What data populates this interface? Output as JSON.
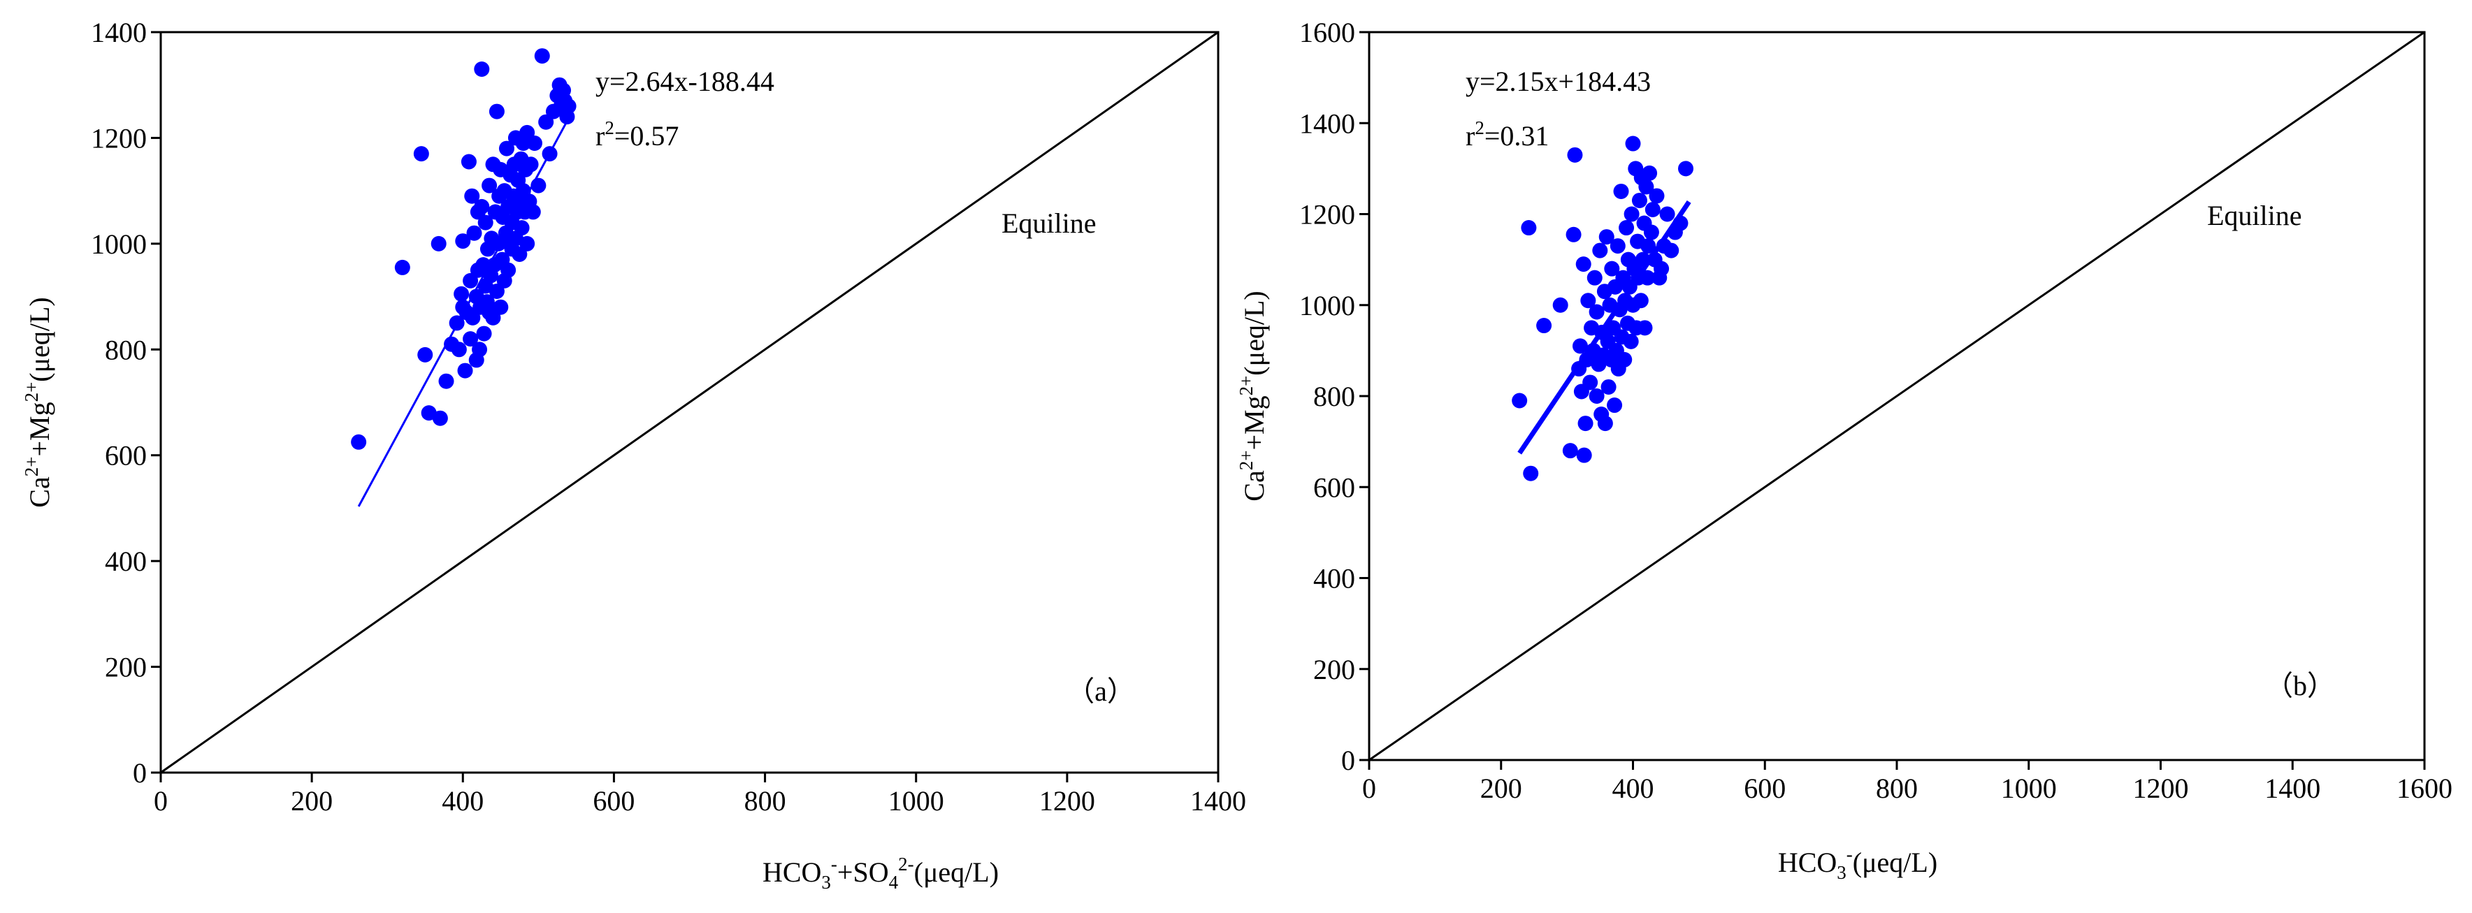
{
  "colors": {
    "points": "#0000ff",
    "fit": "#0000ff",
    "axes": "#000000",
    "equiline": "#000000"
  },
  "chart_data": [
    {
      "type": "scatter",
      "panel": "(a)",
      "panel_label": "（a）",
      "xlabel_parts": [
        "HCO",
        "3",
        "-",
        "+SO",
        "4",
        "2-",
        "(μeq/L)"
      ],
      "ylabel_parts": [
        "Ca",
        "2+",
        "+Mg",
        "2+",
        "(μeq/L)"
      ],
      "xlim": [
        0,
        1400
      ],
      "ylim": [
        0,
        1400
      ],
      "xticks": [
        0,
        200,
        400,
        600,
        800,
        1000,
        1200,
        1400
      ],
      "yticks": [
        0,
        200,
        400,
        600,
        800,
        1000,
        1200,
        1400
      ],
      "xtick_labels": [
        "0",
        "200",
        "400",
        "600",
        "800",
        "1000",
        "1200",
        "1400"
      ],
      "ytick_labels": [
        "0",
        "200",
        "400",
        "600",
        "800",
        "1000",
        "1200",
        "1400"
      ],
      "equation": "y=2.64x-188.44",
      "r2_prefix": "r",
      "r2_sup": "2",
      "r2_value": "=0.57",
      "equiline_label": "Equiline",
      "fit": {
        "slope": 2.64,
        "intercept": -188.44,
        "x_range": [
          262,
          540
        ]
      },
      "points": [
        [
          262,
          625
        ],
        [
          320,
          955
        ],
        [
          345,
          1170
        ],
        [
          350,
          790
        ],
        [
          355,
          680
        ],
        [
          368,
          1000
        ],
        [
          370,
          670
        ],
        [
          378,
          740
        ],
        [
          385,
          810
        ],
        [
          392,
          850
        ],
        [
          395,
          800
        ],
        [
          398,
          905
        ],
        [
          400,
          880
        ],
        [
          400,
          1005
        ],
        [
          403,
          760
        ],
        [
          405,
          870
        ],
        [
          408,
          1155
        ],
        [
          410,
          820
        ],
        [
          410,
          930
        ],
        [
          412,
          1090
        ],
        [
          413,
          860
        ],
        [
          415,
          1020
        ],
        [
          418,
          780
        ],
        [
          418,
          900
        ],
        [
          420,
          950
        ],
        [
          420,
          1060
        ],
        [
          422,
          800
        ],
        [
          423,
          880
        ],
        [
          425,
          1070
        ],
        [
          425,
          1330
        ],
        [
          427,
          960
        ],
        [
          428,
          830
        ],
        [
          430,
          920
        ],
        [
          430,
          1040
        ],
        [
          432,
          890
        ],
        [
          433,
          990
        ],
        [
          435,
          870
        ],
        [
          435,
          1110
        ],
        [
          437,
          940
        ],
        [
          438,
          1010
        ],
        [
          440,
          860
        ],
        [
          440,
          1150
        ],
        [
          442,
          960
        ],
        [
          443,
          1060
        ],
        [
          445,
          910
        ],
        [
          445,
          1250
        ],
        [
          447,
          1000
        ],
        [
          448,
          1090
        ],
        [
          450,
          880
        ],
        [
          450,
          1140
        ],
        [
          452,
          970
        ],
        [
          453,
          1050
        ],
        [
          455,
          930
        ],
        [
          455,
          1100
        ],
        [
          457,
          1020
        ],
        [
          458,
          1180
        ],
        [
          460,
          950
        ],
        [
          460,
          1070
        ],
        [
          462,
          1000
        ],
        [
          463,
          1130
        ],
        [
          465,
          990
        ],
        [
          465,
          1040
        ],
        [
          467,
          1090
        ],
        [
          468,
          1150
        ],
        [
          470,
          1010
        ],
        [
          470,
          1200
        ],
        [
          472,
          1060
        ],
        [
          473,
          1120
        ],
        [
          475,
          980
        ],
        [
          475,
          1080
        ],
        [
          477,
          1160
        ],
        [
          478,
          1030
        ],
        [
          480,
          1100
        ],
        [
          480,
          1190
        ],
        [
          482,
          1060
        ],
        [
          483,
          1140
        ],
        [
          485,
          1000
        ],
        [
          485,
          1210
        ],
        [
          488,
          1080
        ],
        [
          490,
          1150
        ],
        [
          493,
          1060
        ],
        [
          495,
          1190
        ],
        [
          500,
          1110
        ],
        [
          505,
          1355
        ],
        [
          510,
          1230
        ],
        [
          515,
          1170
        ],
        [
          520,
          1250
        ],
        [
          525,
          1280
        ],
        [
          528,
          1300
        ],
        [
          530,
          1260
        ],
        [
          533,
          1290
        ],
        [
          535,
          1270
        ],
        [
          538,
          1240
        ],
        [
          540,
          1260
        ]
      ]
    },
    {
      "type": "scatter",
      "panel": "(b)",
      "panel_label": "（b）",
      "xlabel_parts": [
        "HCO",
        "3",
        "-",
        "(μeq/L)"
      ],
      "ylabel_parts": [
        "Ca",
        "2+",
        "+Mg",
        "2+",
        "(μeq/L)"
      ],
      "xlim": [
        0,
        1600
      ],
      "ylim": [
        0,
        1600
      ],
      "xticks": [
        0,
        200,
        400,
        600,
        800,
        1000,
        1200,
        1400,
        1600
      ],
      "yticks": [
        0,
        200,
        400,
        600,
        800,
        1000,
        1200,
        1400,
        1600
      ],
      "xtick_labels": [
        "0",
        "200",
        "400",
        "600",
        "800",
        "1000",
        "1200",
        "1400",
        "1600"
      ],
      "ytick_labels": [
        "0",
        "200",
        "400",
        "600",
        "800",
        "1000",
        "1200",
        "1400",
        "1600"
      ],
      "equation": "y=2.15x+184.43",
      "r2_prefix": "r",
      "r2_sup": "2",
      "r2_value": "=0.31",
      "equiline_label": "Equiline",
      "fit": {
        "slope": 2.15,
        "intercept": 184.43,
        "x_range": [
          228,
          485
        ]
      },
      "points": [
        [
          228,
          790
        ],
        [
          242,
          1170
        ],
        [
          245,
          630
        ],
        [
          265,
          955
        ],
        [
          290,
          1000
        ],
        [
          305,
          680
        ],
        [
          310,
          1155
        ],
        [
          312,
          1330
        ],
        [
          318,
          860
        ],
        [
          320,
          910
        ],
        [
          322,
          810
        ],
        [
          325,
          1090
        ],
        [
          326,
          670
        ],
        [
          328,
          740
        ],
        [
          330,
          880
        ],
        [
          332,
          1010
        ],
        [
          335,
          830
        ],
        [
          337,
          950
        ],
        [
          340,
          900
        ],
        [
          342,
          1060
        ],
        [
          345,
          800
        ],
        [
          345,
          985
        ],
        [
          348,
          870
        ],
        [
          350,
          1120
        ],
        [
          352,
          760
        ],
        [
          353,
          940
        ],
        [
          355,
          890
        ],
        [
          357,
          1030
        ],
        [
          358,
          740
        ],
        [
          360,
          1150
        ],
        [
          362,
          920
        ],
        [
          363,
          820
        ],
        [
          365,
          1000
        ],
        [
          367,
          880
        ],
        [
          368,
          1080
        ],
        [
          370,
          950
        ],
        [
          372,
          780
        ],
        [
          373,
          1040
        ],
        [
          375,
          900
        ],
        [
          377,
          1130
        ],
        [
          378,
          860
        ],
        [
          380,
          990
        ],
        [
          382,
          1250
        ],
        [
          383,
          930
        ],
        [
          385,
          1060
        ],
        [
          387,
          880
        ],
        [
          388,
          1010
        ],
        [
          390,
          1170
        ],
        [
          392,
          960
        ],
        [
          393,
          1100
        ],
        [
          395,
          1040
        ],
        [
          397,
          920
        ],
        [
          398,
          1200
        ],
        [
          400,
          1355
        ],
        [
          400,
          1000
        ],
        [
          402,
          1080
        ],
        [
          404,
          1300
        ],
        [
          405,
          950
        ],
        [
          407,
          1140
        ],
        [
          408,
          1060
        ],
        [
          410,
          1230
        ],
        [
          412,
          1010
        ],
        [
          413,
          1280
        ],
        [
          415,
          1100
        ],
        [
          417,
          1180
        ],
        [
          418,
          950
        ],
        [
          420,
          1260
        ],
        [
          422,
          1060
        ],
        [
          423,
          1130
        ],
        [
          425,
          1290
        ],
        [
          428,
          1160
        ],
        [
          430,
          1210
        ],
        [
          433,
          1100
        ],
        [
          436,
          1240
        ],
        [
          440,
          1060
        ],
        [
          443,
          1080
        ],
        [
          447,
          1130
        ],
        [
          452,
          1200
        ],
        [
          458,
          1120
        ],
        [
          464,
          1160
        ],
        [
          472,
          1180
        ],
        [
          480,
          1300
        ]
      ]
    }
  ]
}
